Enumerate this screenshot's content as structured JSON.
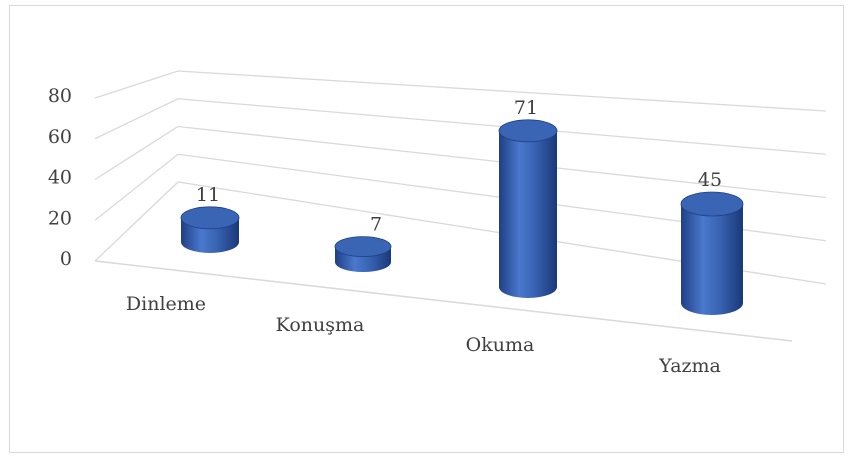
{
  "chart_data": {
    "type": "bar",
    "style": "3d-cylinder",
    "categories": [
      "Dinleme",
      "Konuşma",
      "Okuma",
      "Yazma"
    ],
    "values": [
      11,
      7,
      71,
      45
    ],
    "data_labels": [
      "11",
      "7",
      "71",
      "45"
    ],
    "y_ticks": [
      "0",
      "20",
      "40",
      "60",
      "80"
    ],
    "ylim": [
      0,
      80
    ],
    "grid": true,
    "legend": "none",
    "colors": {
      "bar": "#3a65b5",
      "bar_dark": "#1f3f86",
      "bar_light": "#6d93d8",
      "grid": "#d9d9d9",
      "text": "#404040"
    }
  }
}
